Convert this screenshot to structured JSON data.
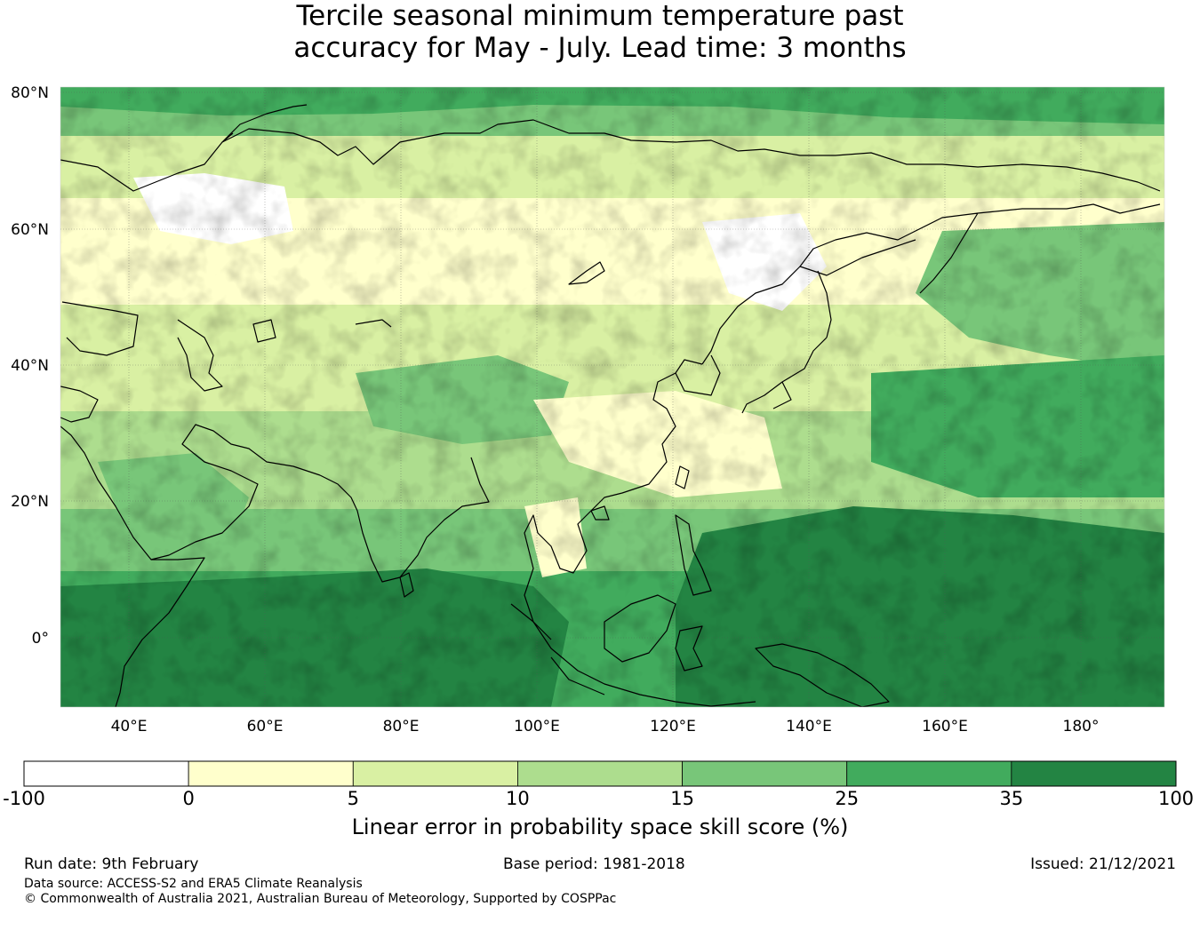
{
  "title_line1": "Tercile seasonal minimum temperature past",
  "title_line2": "accuracy for May - July. Lead time: 3 months",
  "map": {
    "lon_range": [
      30,
      192
    ],
    "lat_range": [
      -10,
      80.5
    ],
    "lon_ticks": [
      "40°E",
      "60°E",
      "80°E",
      "100°E",
      "120°E",
      "140°E",
      "160°E",
      "180°"
    ],
    "lat_ticks": [
      "80°N",
      "60°N",
      "40°N",
      "20°N",
      "0°"
    ]
  },
  "colorbar": {
    "boundaries": [
      "-100",
      "0",
      "5",
      "10",
      "15",
      "25",
      "35",
      "100"
    ],
    "colors": [
      "#ffffff",
      "#ffffcc",
      "#d9f0a3",
      "#addd8e",
      "#78c679",
      "#41ab5d",
      "#238443"
    ],
    "label": "Linear error in probability space skill score (%)"
  },
  "footer": {
    "run_date": "Run date: 9th February",
    "base_period": "Base period: 1981-2018",
    "issued": "Issued: 21/12/2021",
    "data_source": "Data source: ACCESS-S2 and ERA5 Climate Reanalysis",
    "copyright": "© Commonwealth of Australia 2021, Australian Bureau of Meteorology, Supported by COSPPac"
  }
}
